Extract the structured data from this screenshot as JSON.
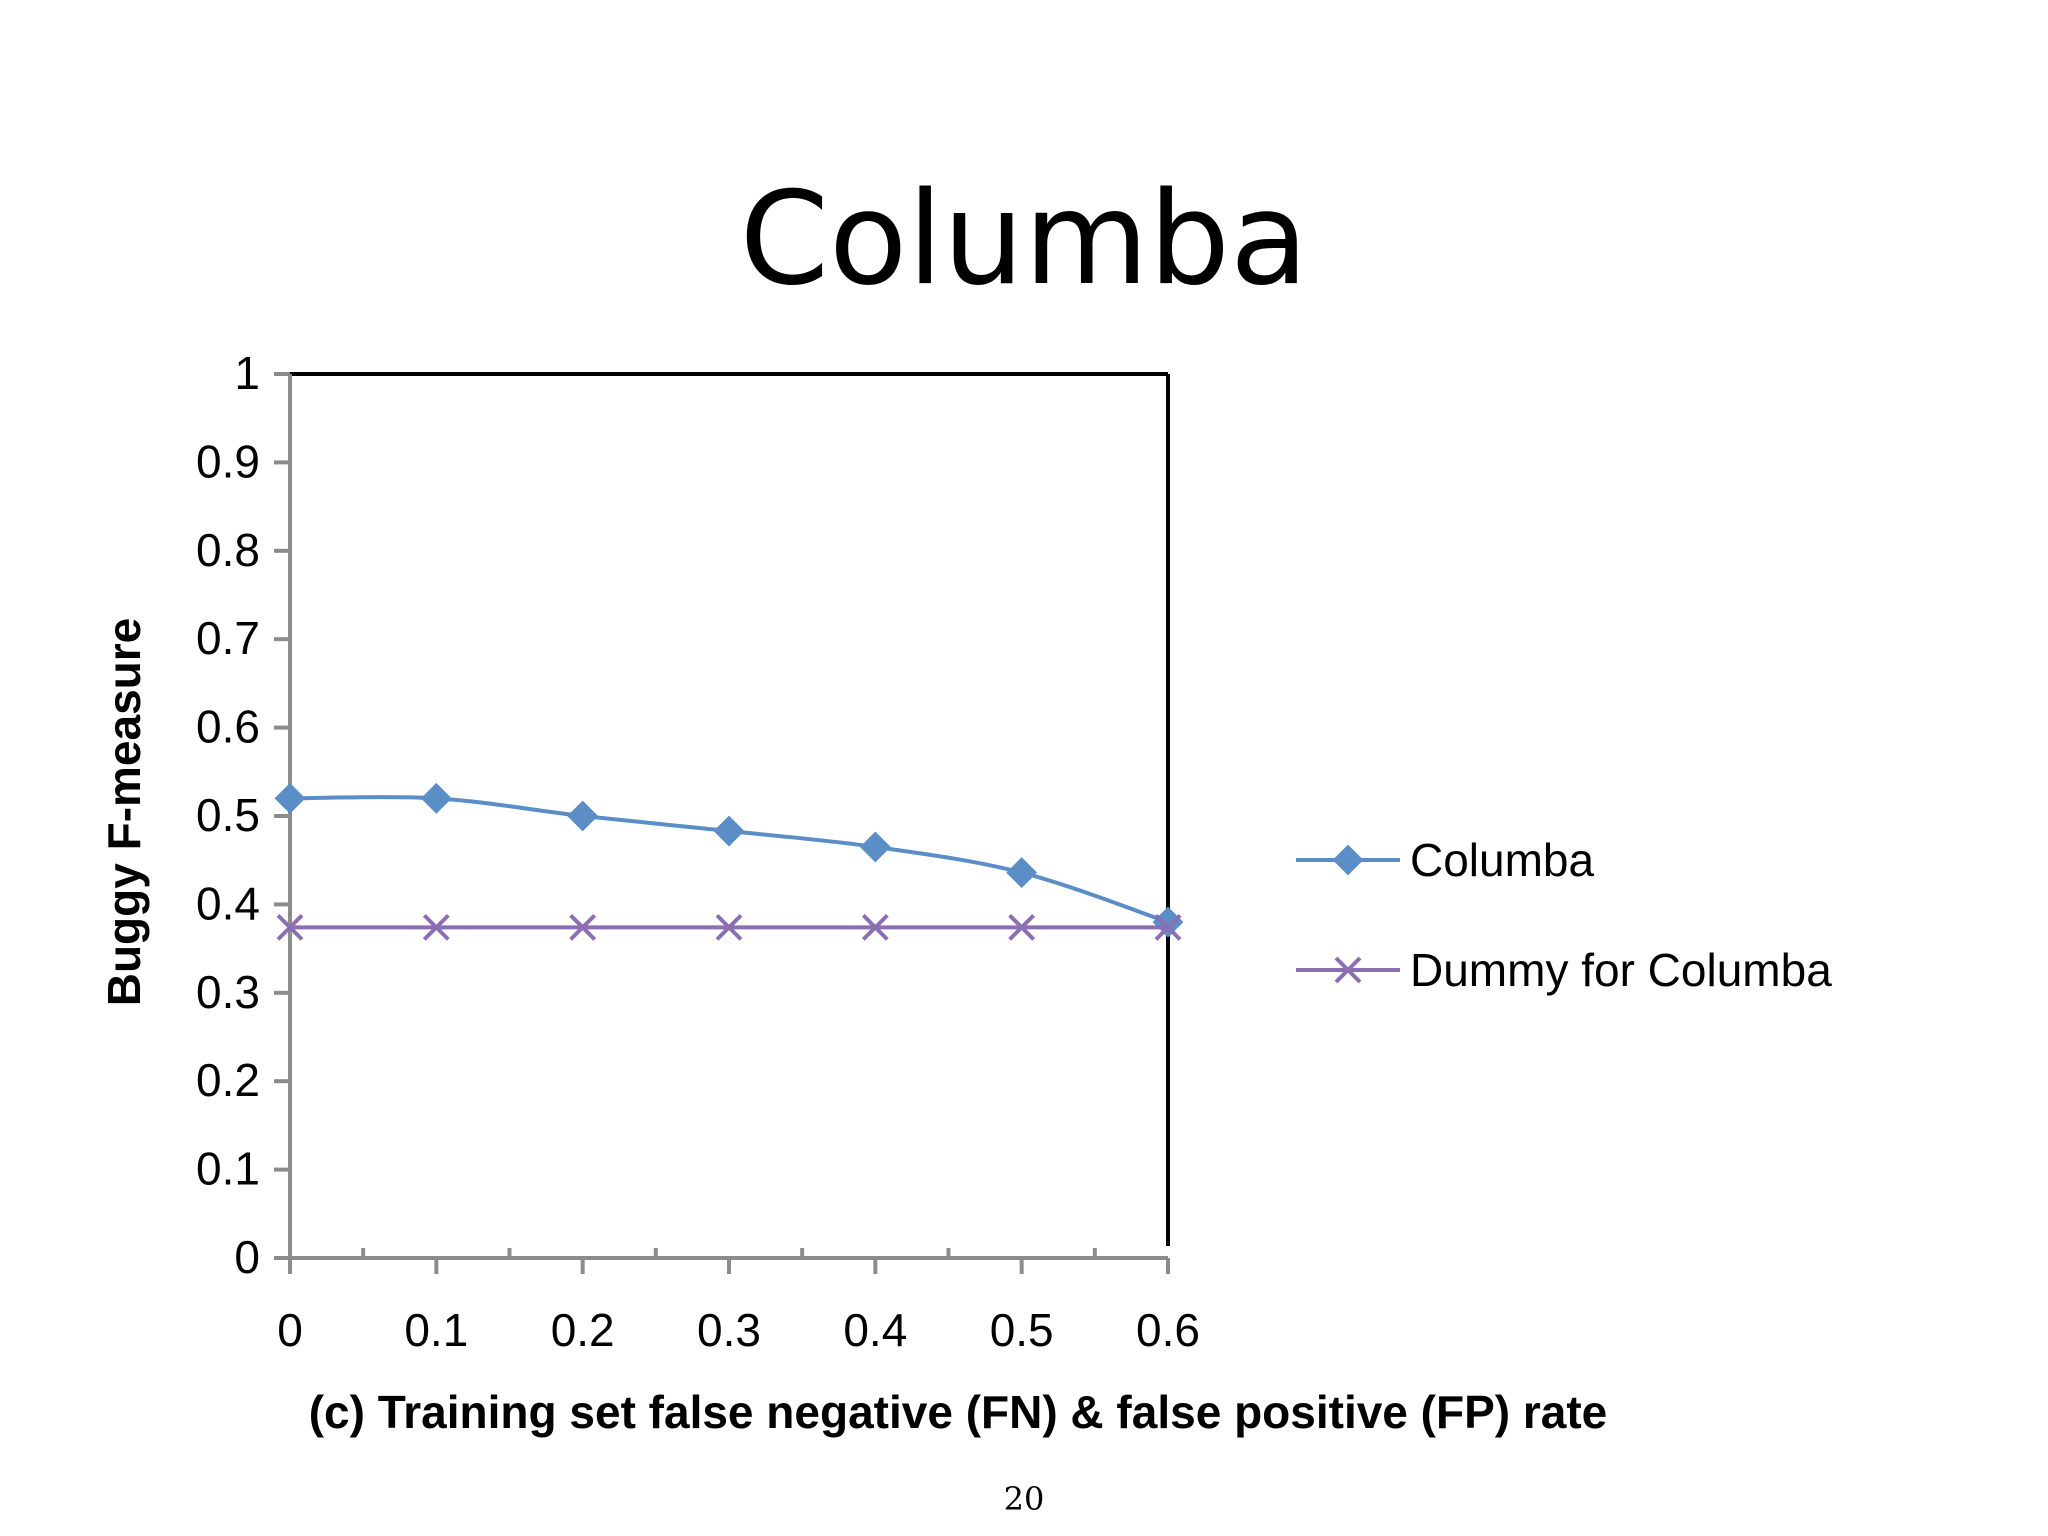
{
  "slide": {
    "title": "Columba",
    "page_number": "20"
  },
  "chart_data": {
    "type": "line",
    "x": [
      0,
      0.1,
      0.2,
      0.3,
      0.4,
      0.5,
      0.6
    ],
    "x_tick_labels": [
      "0",
      "0.1",
      "0.2",
      "0.3",
      "0.4",
      "0.5",
      "0.6"
    ],
    "y_tick_values": [
      0,
      0.1,
      0.2,
      0.3,
      0.4,
      0.5,
      0.6,
      0.7,
      0.8,
      0.9,
      1
    ],
    "y_tick_labels": [
      "0",
      "0.1",
      "0.2",
      "0.3",
      "0.4",
      "0.5",
      "0.6",
      "0.7",
      "0.8",
      "0.9",
      "1"
    ],
    "xlim": [
      0,
      0.6
    ],
    "ylim": [
      0,
      1
    ],
    "xlabel": "(c) Training set false negative (FN) & false positive (FP) rate",
    "ylabel": "Buggy F-measure",
    "legend_position": "right",
    "grid": false,
    "series": [
      {
        "name": "Columba",
        "values": [
          0.52,
          0.52,
          0.5,
          0.483,
          0.465,
          0.436,
          0.38
        ],
        "color": "#5b8dc6",
        "marker": "diamond"
      },
      {
        "name": "Dummy for Columba",
        "values": [
          0.374,
          0.374,
          0.374,
          0.374,
          0.374,
          0.374,
          0.374
        ],
        "color": "#8c6fb3",
        "marker": "x"
      }
    ]
  }
}
